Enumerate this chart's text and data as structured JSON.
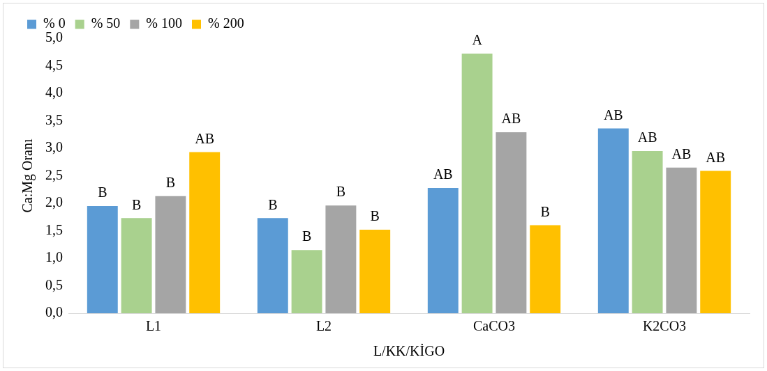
{
  "chart_data": {
    "type": "bar",
    "xlabel": "L/KK/KİGO",
    "ylabel": "Ca:Mg Oranı",
    "categories": [
      "L1",
      "L2",
      "CaCO3",
      "K2CO3"
    ],
    "series": [
      {
        "name": "% 0",
        "color": "#5b9bd5",
        "values": [
          1.95,
          1.73,
          2.28,
          3.36
        ],
        "value_labels": [
          "B",
          "B",
          "AB",
          "AB"
        ]
      },
      {
        "name": "% 50",
        "color": "#a9d18e",
        "values": [
          1.73,
          1.15,
          4.72,
          2.95
        ],
        "value_labels": [
          "B",
          "B",
          "A",
          "AB"
        ]
      },
      {
        "name": "% 100",
        "color": "#a5a5a5",
        "values": [
          2.13,
          1.96,
          3.29,
          2.65
        ],
        "value_labels": [
          "B",
          "B",
          "AB",
          "AB"
        ]
      },
      {
        "name": "% 200",
        "color": "#ffc000",
        "values": [
          2.93,
          1.52,
          1.6,
          2.59
        ],
        "value_labels": [
          "AB",
          "B",
          "B",
          "AB"
        ]
      }
    ],
    "ylim": [
      0,
      5
    ],
    "yticks": [
      {
        "value": 0,
        "label": "0,0"
      },
      {
        "value": 0.5,
        "label": "0,5"
      },
      {
        "value": 1,
        "label": "1,0"
      },
      {
        "value": 1.5,
        "label": "1,5"
      },
      {
        "value": 2,
        "label": "2,0"
      },
      {
        "value": 2.5,
        "label": "2,5"
      },
      {
        "value": 3,
        "label": "3,0"
      },
      {
        "value": 3.5,
        "label": "3,5"
      },
      {
        "value": 4,
        "label": "4,0"
      },
      {
        "value": 4.5,
        "label": "4,5"
      },
      {
        "value": 5,
        "label": "5,0"
      }
    ],
    "grid": false,
    "legend": "top left"
  }
}
